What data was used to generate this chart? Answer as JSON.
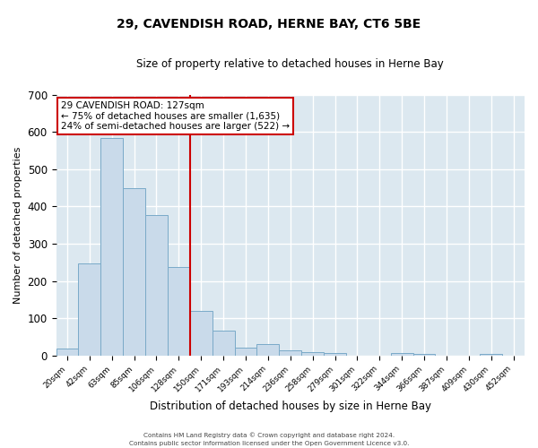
{
  "title": "29, CAVENDISH ROAD, HERNE BAY, CT6 5BE",
  "subtitle": "Size of property relative to detached houses in Herne Bay",
  "xlabel": "Distribution of detached houses by size in Herne Bay",
  "ylabel": "Number of detached properties",
  "bar_color": "#c9daea",
  "bar_edge_color": "#7aaac8",
  "fig_background_color": "#ffffff",
  "axes_background_color": "#dce8f0",
  "grid_color": "#ffffff",
  "bin_labels": [
    "20sqm",
    "42sqm",
    "63sqm",
    "85sqm",
    "106sqm",
    "128sqm",
    "150sqm",
    "171sqm",
    "193sqm",
    "214sqm",
    "236sqm",
    "258sqm",
    "279sqm",
    "301sqm",
    "322sqm",
    "344sqm",
    "366sqm",
    "387sqm",
    "409sqm",
    "430sqm",
    "452sqm"
  ],
  "bar_heights": [
    18,
    248,
    583,
    450,
    378,
    237,
    120,
    68,
    22,
    31,
    14,
    10,
    8,
    0,
    0,
    7,
    5,
    0,
    0,
    5,
    0
  ],
  "ylim": [
    0,
    700
  ],
  "yticks": [
    0,
    100,
    200,
    300,
    400,
    500,
    600,
    700
  ],
  "property_line_color": "#cc0000",
  "annotation_title": "29 CAVENDISH ROAD: 127sqm",
  "annotation_line1": "← 75% of detached houses are smaller (1,635)",
  "annotation_line2": "24% of semi-detached houses are larger (522) →",
  "annotation_box_color": "#ffffff",
  "annotation_border_color": "#cc0000",
  "footer_line1": "Contains HM Land Registry data © Crown copyright and database right 2024.",
  "footer_line2": "Contains public sector information licensed under the Open Government Licence v3.0.",
  "n_bins": 21
}
